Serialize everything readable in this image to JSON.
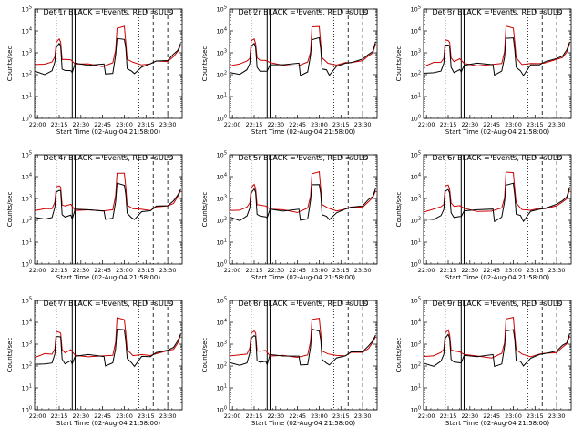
{
  "chart_data": [
    {
      "type": "line",
      "title": "Det 1r BLACK = Events, RED = ULD",
      "xlabel": "Start Time (02-Aug-04 21:58:00)",
      "ylabel": "Counts/sec",
      "x_ticks": [
        "22:00",
        "22:15",
        "22:30",
        "22:45",
        "23:00",
        "23:15",
        "23:30"
      ],
      "y_ticks": [
        "10^0",
        "10^1",
        "10^2",
        "10^3",
        "10^4",
        "10^5"
      ],
      "ylim": [
        1,
        100000
      ],
      "yscale": "log",
      "xlim": [
        "21:58",
        "23:40"
      ],
      "sd_flags": [
        "S",
        "S"
      ]
    },
    {
      "type": "line",
      "title": "Det 2r BLACK = Events, RED = ULD",
      "xlabel": "Start Time (02-Aug-04 21:58:00)",
      "ylabel": "Counts/sec",
      "x_ticks": [
        "22:00",
        "22:15",
        "22:30",
        "22:45",
        "23:00",
        "23:15",
        "23:30"
      ],
      "y_ticks": [
        "10^0",
        "10^1",
        "10^2",
        "10^3",
        "10^4",
        "10^5"
      ],
      "ylim": [
        1,
        100000
      ],
      "yscale": "log",
      "xlim": [
        "21:58",
        "23:40"
      ],
      "sd_flags": [
        "S",
        "S"
      ]
    },
    {
      "type": "line",
      "title": "Det 3r BLACK = Events, RED = ULD",
      "xlabel": "Start Time (02-Aug-04 21:58:00)",
      "ylabel": "Counts/sec",
      "x_ticks": [
        "22:00",
        "22:15",
        "22:30",
        "22:45",
        "23:00",
        "23:15",
        "23:30"
      ],
      "y_ticks": [
        "10^0",
        "10^1",
        "10^2",
        "10^3",
        "10^4",
        "10^5"
      ],
      "ylim": [
        1,
        100000
      ],
      "yscale": "log",
      "xlim": [
        "21:58",
        "23:40"
      ],
      "sd_flags": [
        "S",
        "S"
      ]
    },
    {
      "type": "line",
      "title": "Det 4r BLACK = Events, RED = ULD",
      "xlabel": "Start Time (02-Aug-04 21:58:00)",
      "ylabel": "Counts/sec",
      "x_ticks": [
        "22:00",
        "22:15",
        "22:30",
        "22:45",
        "23:00",
        "23:15",
        "23:30"
      ],
      "y_ticks": [
        "10^0",
        "10^1",
        "10^2",
        "10^3",
        "10^4",
        "10^5"
      ],
      "ylim": [
        1,
        100000
      ],
      "yscale": "log",
      "xlim": [
        "21:58",
        "23:40"
      ],
      "sd_flags": [
        "S",
        "S"
      ]
    },
    {
      "type": "line",
      "title": "Det 5r BLACK = Events, RED = ULD",
      "xlabel": "Start Time (02-Aug-04 21:58:00)",
      "ylabel": "Counts/sec",
      "x_ticks": [
        "22:00",
        "22:15",
        "22:30",
        "22:45",
        "23:00",
        "23:15",
        "23:30"
      ],
      "y_ticks": [
        "10^0",
        "10^1",
        "10^2",
        "10^3",
        "10^4",
        "10^5"
      ],
      "ylim": [
        1,
        100000
      ],
      "yscale": "log",
      "xlim": [
        "21:58",
        "23:40"
      ],
      "sd_flags": [
        "S",
        "S"
      ]
    },
    {
      "type": "line",
      "title": "Det 6r BLACK = Events, RED = ULD",
      "xlabel": "Start Time (02-Aug-04 21:58:00)",
      "ylabel": "Counts/sec",
      "x_ticks": [
        "22:00",
        "22:15",
        "22:30",
        "22:45",
        "23:00",
        "23:15",
        "23:30"
      ],
      "y_ticks": [
        "10^0",
        "10^1",
        "10^2",
        "10^3",
        "10^4",
        "10^5"
      ],
      "ylim": [
        1,
        100000
      ],
      "yscale": "log",
      "xlim": [
        "21:58",
        "23:40"
      ],
      "sd_flags": [
        "S",
        "S"
      ]
    },
    {
      "type": "line",
      "title": "Det 7r BLACK = Events, RED = ULD",
      "xlabel": "Start Time (02-Aug-04 21:58:00)",
      "ylabel": "Counts/sec",
      "x_ticks": [
        "22:00",
        "22:15",
        "22:30",
        "22:45",
        "23:00",
        "23:15",
        "23:30"
      ],
      "y_ticks": [
        "10^0",
        "10^1",
        "10^2",
        "10^3",
        "10^4",
        "10^5"
      ],
      "ylim": [
        1,
        100000
      ],
      "yscale": "log",
      "xlim": [
        "21:58",
        "23:40"
      ],
      "sd_flags": [
        "S",
        "S"
      ]
    },
    {
      "type": "line",
      "title": "Det 8r BLACK = Events, RED = ULD",
      "xlabel": "Start Time (02-Aug-04 21:58:00)",
      "ylabel": "Counts/sec",
      "x_ticks": [
        "22:00",
        "22:15",
        "22:30",
        "22:45",
        "23:00",
        "23:15",
        "23:30"
      ],
      "y_ticks": [
        "10^0",
        "10^1",
        "10^2",
        "10^3",
        "10^4",
        "10^5"
      ],
      "ylim": [
        1,
        100000
      ],
      "yscale": "log",
      "xlim": [
        "21:58",
        "23:40"
      ],
      "sd_flags": [
        "S",
        "S"
      ]
    },
    {
      "type": "line",
      "title": "Det 9r BLACK = Events, RED = ULD",
      "xlabel": "Start Time (02-Aug-04 21:58:00)",
      "ylabel": "Counts/sec",
      "x_ticks": [
        "22:00",
        "22:15",
        "22:30",
        "22:45",
        "23:00",
        "23:15",
        "23:30"
      ],
      "y_ticks": [
        "10^0",
        "10^1",
        "10^2",
        "10^3",
        "10^4",
        "10^5"
      ],
      "ylim": [
        1,
        100000
      ],
      "yscale": "log",
      "xlim": [
        "21:58",
        "23:40"
      ],
      "sd_flags": [
        "S",
        "S"
      ]
    }
  ],
  "series_colors": {
    "events": "#000000",
    "uld": "#cc0000"
  },
  "markers": {
    "dotted_times": [
      "22:13",
      "23:10"
    ],
    "solid_times": [
      "22:24",
      "22:26"
    ],
    "dashed_times": [
      "23:20",
      "23:30"
    ]
  },
  "traces": {
    "uld": [
      [
        "21:58",
        260
      ],
      [
        "22:05",
        330
      ],
      [
        "22:10",
        380
      ],
      [
        "22:12",
        600
      ],
      [
        "22:13",
        3500
      ],
      [
        "22:15",
        4000
      ],
      [
        "22:16",
        3000
      ],
      [
        "22:17",
        550
      ],
      [
        "22:19",
        450
      ],
      [
        "22:23",
        500
      ],
      [
        "22:26",
        320
      ],
      [
        "22:35",
        280
      ],
      [
        "22:45",
        260
      ],
      [
        "22:52",
        340
      ],
      [
        "22:54",
        1200
      ],
      [
        "22:55",
        15000
      ],
      [
        "23:00",
        15000
      ],
      [
        "23:01",
        3000
      ],
      [
        "23:02",
        550
      ],
      [
        "23:06",
        330
      ],
      [
        "23:12",
        300
      ],
      [
        "23:18",
        320
      ],
      [
        "23:22",
        380
      ],
      [
        "23:30",
        450
      ],
      [
        "23:34",
        650
      ],
      [
        "23:37",
        1100
      ],
      [
        "23:39",
        2500
      ]
    ],
    "events": [
      [
        "21:58",
        130
      ],
      [
        "22:05",
        110
      ],
      [
        "22:10",
        150
      ],
      [
        "22:12",
        350
      ],
      [
        "22:13",
        2000
      ],
      [
        "22:15",
        2500
      ],
      [
        "22:16",
        2000
      ],
      [
        "22:17",
        200
      ],
      [
        "22:19",
        140
      ],
      [
        "22:23",
        160
      ],
      [
        "22:24",
        130
      ],
      [
        "22:26",
        300
      ],
      [
        "22:35",
        300
      ],
      [
        "22:46",
        300
      ],
      [
        "22:47",
        100
      ],
      [
        "22:52",
        130
      ],
      [
        "22:54",
        700
      ],
      [
        "22:55",
        4500
      ],
      [
        "23:00",
        4500
      ],
      [
        "23:01",
        1500
      ],
      [
        "23:02",
        200
      ],
      [
        "23:05",
        150
      ],
      [
        "23:07",
        100
      ],
      [
        "23:12",
        250
      ],
      [
        "23:18",
        300
      ],
      [
        "23:22",
        400
      ],
      [
        "23:30",
        500
      ],
      [
        "23:34",
        800
      ],
      [
        "23:37",
        1300
      ],
      [
        "23:39",
        3000
      ]
    ]
  }
}
